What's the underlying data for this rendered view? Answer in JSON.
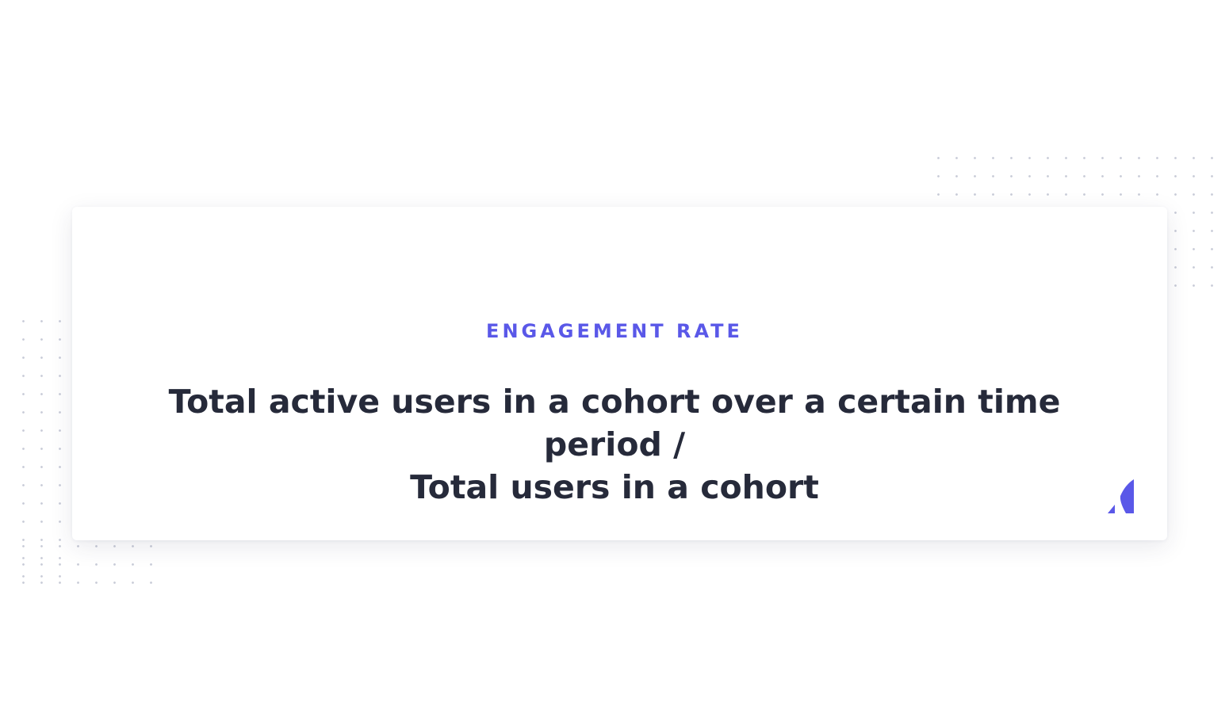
{
  "card": {
    "eyebrow": "ENGAGEMENT RATE",
    "formula_line1": "Total active users in a cohort over a certain time period /",
    "formula_line2": "Total users in a cohort"
  },
  "logo": {
    "icon": "brand-logo-icon",
    "color": "#5a58e8"
  },
  "colors": {
    "accent": "#5a58e8",
    "text": "#262a3a",
    "dots": "#c9ccd8",
    "background": "#ffffff"
  }
}
